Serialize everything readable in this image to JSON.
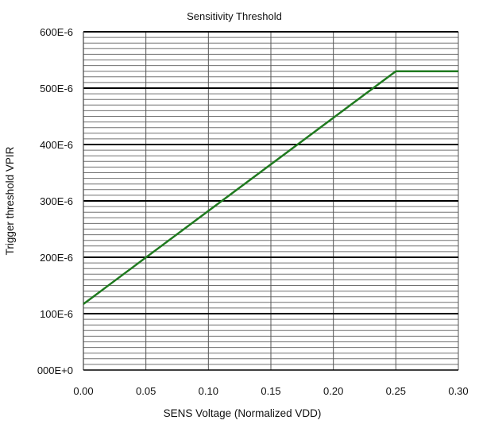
{
  "chart_data": {
    "type": "line",
    "title": "Sensitivity Threshold",
    "xlabel": "SENS Voltage (Normalized VDD)",
    "ylabel": "Trigger threshold VPIR",
    "xlim": [
      0,
      0.3
    ],
    "ylim": [
      0,
      0.0006
    ],
    "x_ticks": [
      "0.00",
      "0.05",
      "0.10",
      "0.15",
      "0.20",
      "0.25",
      "0.30"
    ],
    "y_ticks": [
      "000E+0",
      "100E-6",
      "200E-6",
      "300E-6",
      "400E-6",
      "500E-6",
      "600E-6"
    ],
    "grid": true,
    "series": [
      {
        "color": "#1f7a1f",
        "x": [
          0.0,
          0.25,
          0.3
        ],
        "y": [
          0.000117,
          0.00053,
          0.00053
        ]
      }
    ]
  }
}
